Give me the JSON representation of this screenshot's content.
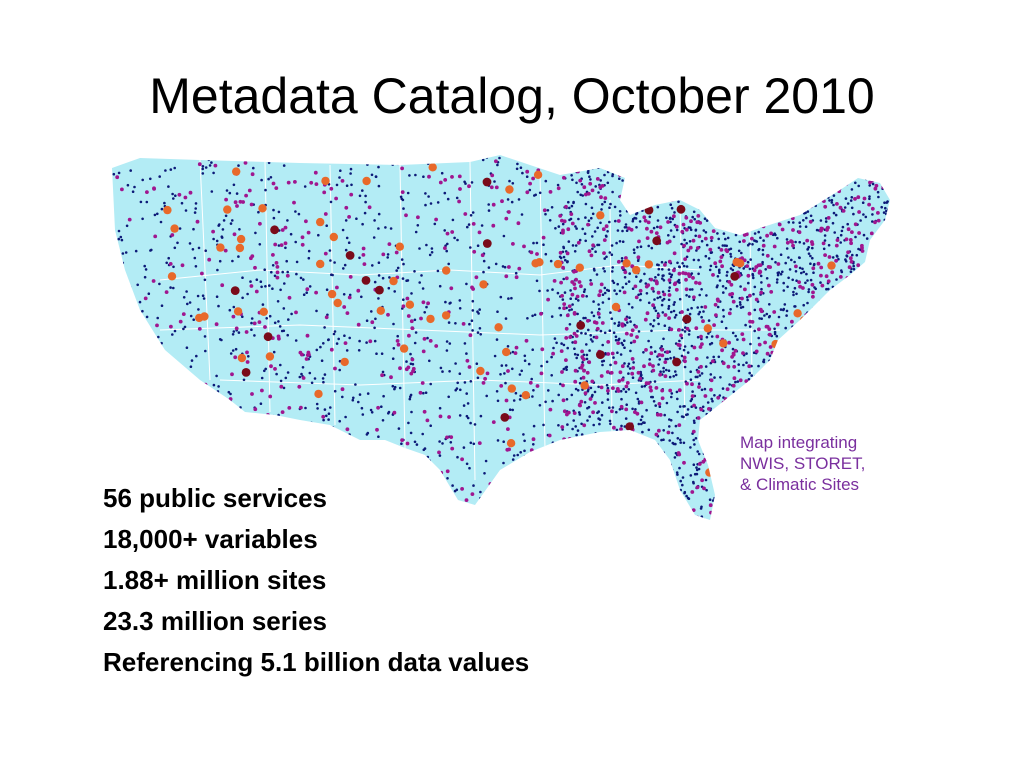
{
  "title": "Metadata Catalog, October 2010",
  "map": {
    "land_color": "#b3ecf5",
    "border_color": "#ffffff",
    "site_colors": {
      "nwis": "#0d1a78",
      "storet": "#a0168f",
      "climatic": "#e8692a",
      "dark": "#7a0b1a"
    }
  },
  "caption": {
    "lines": [
      "Map integrating",
      "NWIS, STORET,",
      "& Climatic Sites"
    ],
    "color": "#7a2f9e"
  },
  "stats": [
    "56 public services",
    "18,000+ variables",
    "1.88+ million sites",
    "23.3 million series",
    "Referencing 5.1 billion data values"
  ]
}
